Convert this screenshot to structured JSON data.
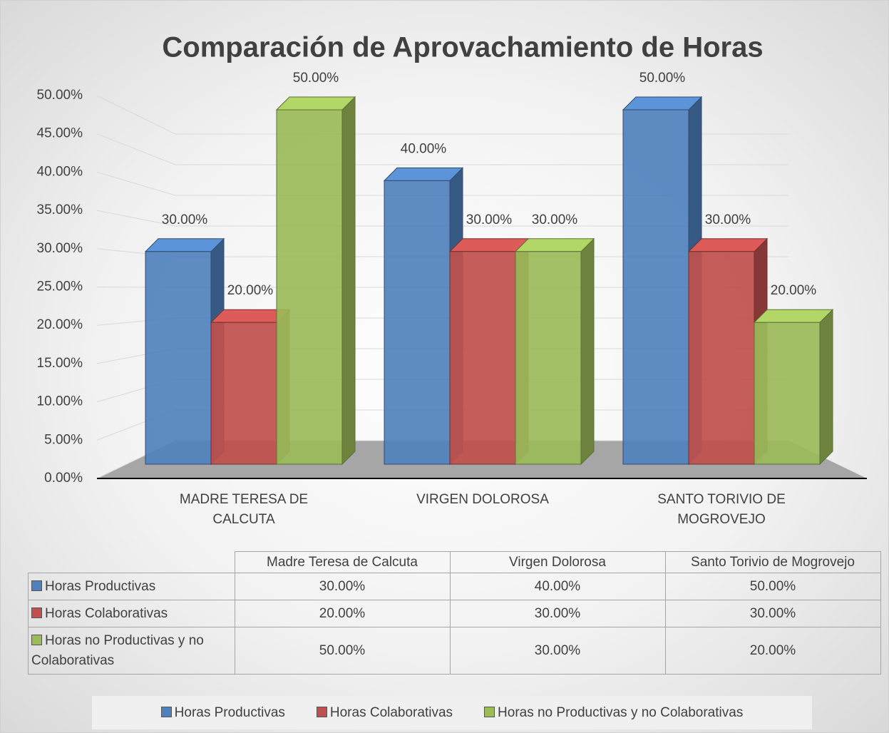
{
  "chart_data": {
    "type": "bar",
    "title": "Comparación de Aprovachamiento de Horas",
    "categories": [
      "MADRE TERESA DE CALCUTA",
      "VIRGEN DOLOROSA",
      "SANTO TORIVIO DE MOGROVEJO"
    ],
    "table_columns": [
      "Madre Teresa de Calcuta",
      "Virgen Dolorosa",
      "Santo Torivio de Mogrovejo"
    ],
    "series": [
      {
        "name": "Horas Productivas",
        "color": "#4f81bd",
        "values": [
          30,
          40,
          50
        ],
        "value_labels": [
          "30.00%",
          "40.00%",
          "50.00%"
        ]
      },
      {
        "name": "Horas Colaborativas",
        "color": "#c0504d",
        "values": [
          20,
          30,
          30
        ],
        "value_labels": [
          "20.00%",
          "30.00%",
          "30.00%"
        ]
      },
      {
        "name": "Horas no Productivas y no Colaborativas",
        "color": "#9bbb59",
        "values": [
          50,
          30,
          20
        ],
        "value_labels": [
          "50.00%",
          "30.00%",
          "20.00%"
        ]
      }
    ],
    "ylim": [
      0,
      50
    ],
    "yticks": [
      {
        "value": 0,
        "label": "0.00%"
      },
      {
        "value": 5,
        "label": "5.00%"
      },
      {
        "value": 10,
        "label": "10.00%"
      },
      {
        "value": 15,
        "label": "15.00%"
      },
      {
        "value": 20,
        "label": "20.00%"
      },
      {
        "value": 25,
        "label": "25.00%"
      },
      {
        "value": 30,
        "label": "30.00%"
      },
      {
        "value": 35,
        "label": "35.00%"
      },
      {
        "value": 40,
        "label": "40.00%"
      },
      {
        "value": 45,
        "label": "45.00%"
      },
      {
        "value": 50,
        "label": "50.00%"
      }
    ],
    "grid": true,
    "legend": "bottom"
  }
}
